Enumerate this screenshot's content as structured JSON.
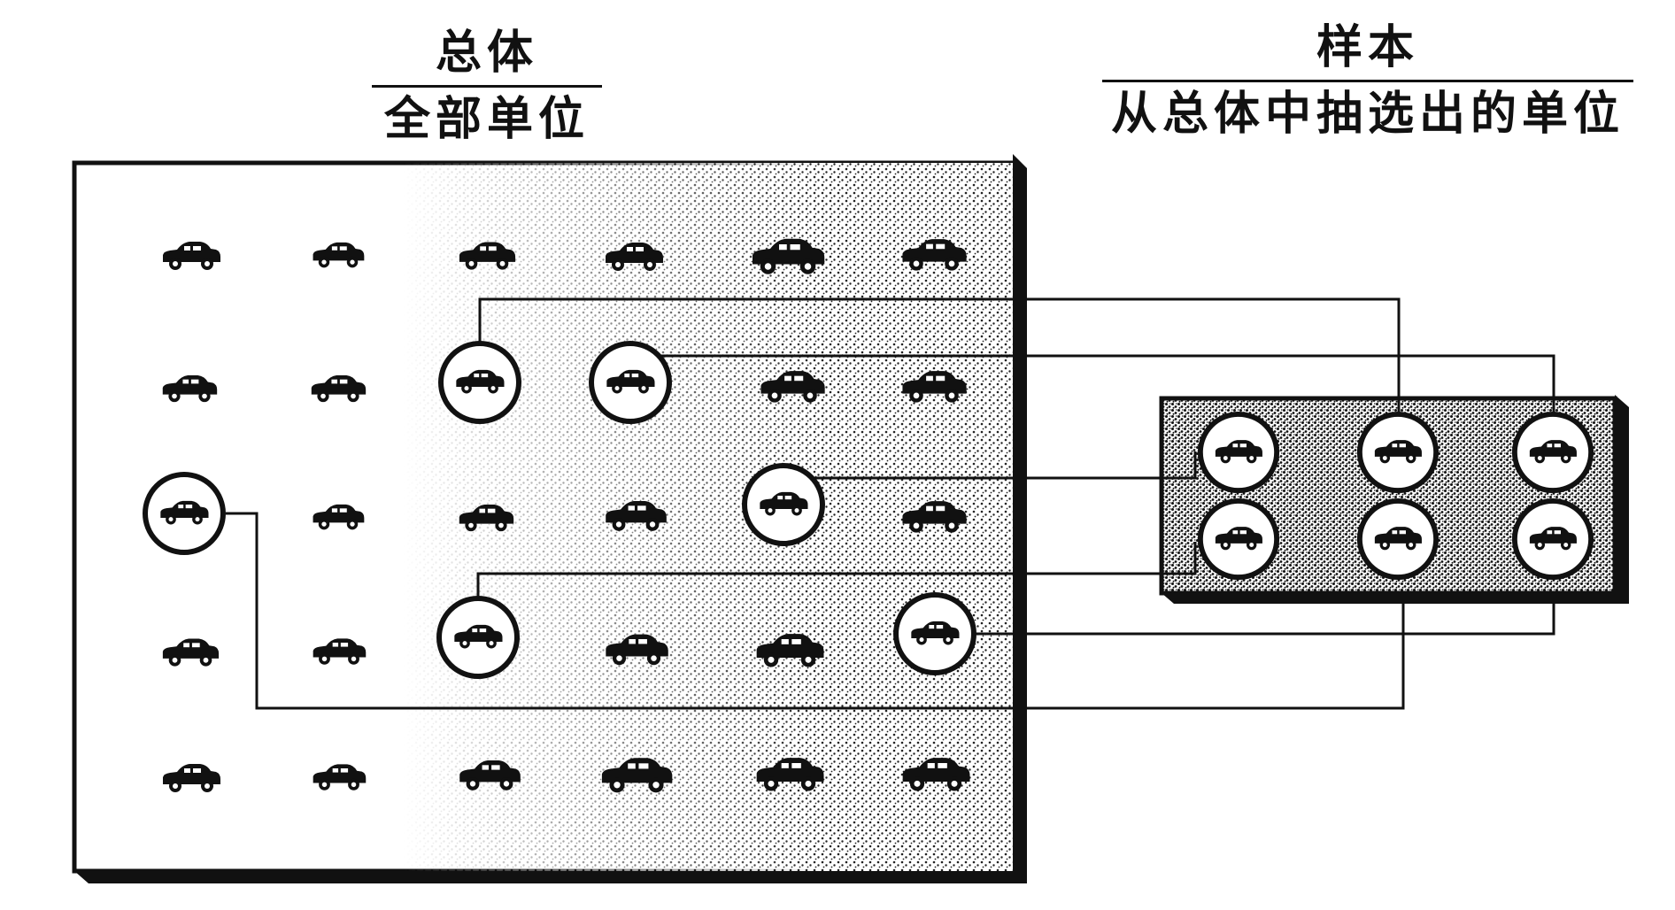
{
  "population": {
    "title": "总体",
    "subtitle": "全部单位"
  },
  "sample": {
    "title": "样本",
    "subtitle": "从总体中抽选出的单位"
  },
  "icons": {
    "unit": "car-icon",
    "selected_unit": "circled-car-icon"
  },
  "colors": {
    "ink": "#111111",
    "paper": "#ffffff",
    "speckle": "#222222"
  }
}
